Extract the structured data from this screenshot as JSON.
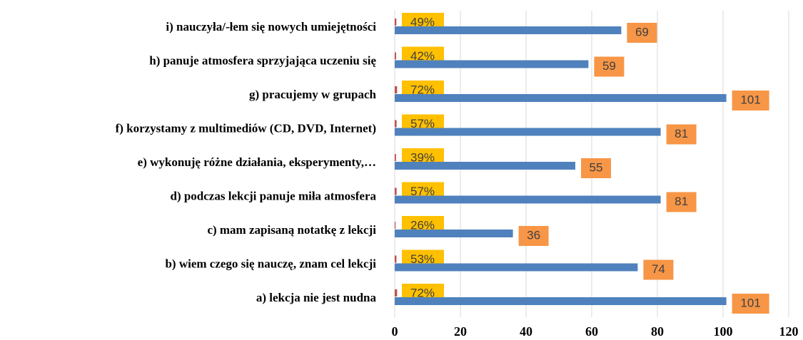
{
  "chart_data": {
    "type": "bar",
    "orientation": "horizontal",
    "categories": [
      "a) lekcja nie jest nudna",
      "b) wiem czego się nauczę, znam cel lekcji",
      "c) mam zapisaną notatkę z lekcji",
      "d) podczas lekcji panuje miła atmosfera",
      "e) wykonuję różne działania, eksperymenty,…",
      "f) korzystamy z multimediów (CD, DVD, Internet)",
      "g) pracujemy w grupach",
      "h) panuje atmosfera sprzyjająca uczeniu się",
      "i) nauczyła/-łem się nowych umiejętności"
    ],
    "series": [
      {
        "color": "#c0504d",
        "label_color": "#ffc000",
        "values": [
          0.72,
          0.53,
          0.26,
          0.57,
          0.39,
          0.57,
          0.72,
          0.42,
          0.49
        ],
        "value_labels": [
          "72%",
          "53%",
          "26%",
          "57%",
          "39%",
          "57%",
          "72%",
          "42%",
          "49%"
        ]
      },
      {
        "color": "#4f81bd",
        "label_color": "#f79646",
        "values": [
          101,
          74,
          36,
          81,
          55,
          81,
          101,
          59,
          69
        ]
      }
    ],
    "xlim": [
      0,
      120
    ],
    "xticks": [
      0,
      20,
      40,
      60,
      80,
      100,
      120
    ],
    "grid": true
  }
}
